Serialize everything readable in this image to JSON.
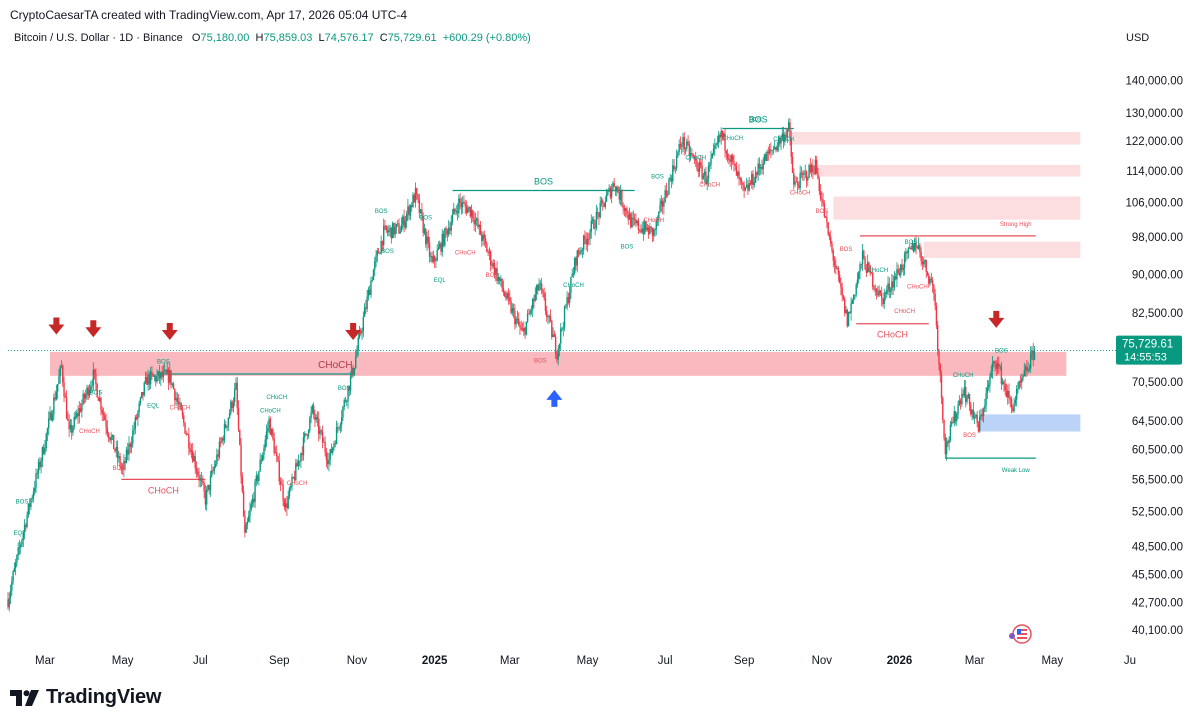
{
  "header": {
    "credit": "CryptoCaesarTA created with TradingView.com, Apr 17, 2026 05:04 UTC-4",
    "symbol": "Bitcoin / U.S. Dollar · 1D · Binance",
    "ohlc": {
      "o_label": "O",
      "o": "75,180.00",
      "h_label": "H",
      "h": "75,859.03",
      "l_label": "L",
      "l": "74,576.17",
      "c_label": "C",
      "c": "75,729.61",
      "change": "+600.29 (+0.80%)"
    },
    "currency": "USD"
  },
  "colors": {
    "up": "#089981",
    "down": "#f23645",
    "structure_red": "#e8505b",
    "zone_red": "#f7a1a8",
    "zone_blue": "#a9c8f5",
    "arrow_red": "#c62828",
    "arrow_blue": "#2962ff"
  },
  "brand": {
    "name": "TradingView",
    "icon": "tradingview-logo-icon"
  },
  "chart_data": {
    "type": "candlestick",
    "title": "Bitcoin / U.S. Dollar · 1D · Binance",
    "y_scale": "log",
    "ylim": [
      38500,
      148000
    ],
    "y_ticks": [
      {
        "value": 140000,
        "label": "140,000.00"
      },
      {
        "value": 130000,
        "label": "130,000.00"
      },
      {
        "value": 122000,
        "label": "122,000.00"
      },
      {
        "value": 114000,
        "label": "114,000.00"
      },
      {
        "value": 106000,
        "label": "106,000.00"
      },
      {
        "value": 98000,
        "label": "98,000.00"
      },
      {
        "value": 90000,
        "label": "90,000.00"
      },
      {
        "value": 82500,
        "label": "82,500.00"
      },
      {
        "value": 70500,
        "label": "70,500.00"
      },
      {
        "value": 64500,
        "label": "64,500.00"
      },
      {
        "value": 60500,
        "label": "60,500.00"
      },
      {
        "value": 56500,
        "label": "56,500.00"
      },
      {
        "value": 52500,
        "label": "52,500.00"
      },
      {
        "value": 48500,
        "label": "48,500.00"
      },
      {
        "value": 45500,
        "label": "45,500.00"
      },
      {
        "value": 42700,
        "label": "42,700.00"
      },
      {
        "value": 40100,
        "label": "40,100.00"
      }
    ],
    "x_range": [
      "2024-02-01",
      "2026-06-20"
    ],
    "x_ticks": [
      {
        "date": "2024-03-01",
        "label": "Mar",
        "bold": false
      },
      {
        "date": "2024-05-01",
        "label": "May",
        "bold": false
      },
      {
        "date": "2024-07-01",
        "label": "Jul",
        "bold": false
      },
      {
        "date": "2024-09-01",
        "label": "Sep",
        "bold": false
      },
      {
        "date": "2024-11-01",
        "label": "Nov",
        "bold": false
      },
      {
        "date": "2025-01-01",
        "label": "2025",
        "bold": true
      },
      {
        "date": "2025-03-01",
        "label": "Mar",
        "bold": false
      },
      {
        "date": "2025-05-01",
        "label": "May",
        "bold": false
      },
      {
        "date": "2025-07-01",
        "label": "Jul",
        "bold": false
      },
      {
        "date": "2025-09-01",
        "label": "Sep",
        "bold": false
      },
      {
        "date": "2025-11-01",
        "label": "Nov",
        "bold": false
      },
      {
        "date": "2026-01-01",
        "label": "2026",
        "bold": true
      },
      {
        "date": "2026-03-01",
        "label": "Mar",
        "bold": false
      },
      {
        "date": "2026-05-01",
        "label": "May",
        "bold": false
      },
      {
        "date": "2026-07-01",
        "label": "Ju",
        "bold": false
      }
    ],
    "price_path": [
      [
        "2024-02-01",
        43000
      ],
      [
        "2024-02-15",
        51500
      ],
      [
        "2024-02-28",
        60000
      ],
      [
        "2024-03-14",
        73000
      ],
      [
        "2024-03-20",
        62500
      ],
      [
        "2024-04-08",
        71500
      ],
      [
        "2024-04-19",
        63500
      ],
      [
        "2024-05-01",
        57500
      ],
      [
        "2024-05-20",
        71000
      ],
      [
        "2024-06-07",
        71500
      ],
      [
        "2024-06-24",
        60500
      ],
      [
        "2024-07-05",
        54000
      ],
      [
        "2024-07-29",
        69500
      ],
      [
        "2024-08-05",
        49500
      ],
      [
        "2024-08-24",
        64500
      ],
      [
        "2024-09-06",
        53000
      ],
      [
        "2024-09-27",
        66000
      ],
      [
        "2024-10-10",
        59000
      ],
      [
        "2024-10-29",
        72500
      ],
      [
        "2024-11-13",
        90000
      ],
      [
        "2024-11-22",
        99000
      ],
      [
        "2024-12-05",
        100000
      ],
      [
        "2024-12-17",
        108000
      ],
      [
        "2024-12-30",
        92000
      ],
      [
        "2025-01-20",
        106000
      ],
      [
        "2025-01-30",
        104000
      ],
      [
        "2025-02-25",
        86000
      ],
      [
        "2025-03-11",
        78500
      ],
      [
        "2025-03-24",
        88000
      ],
      [
        "2025-04-07",
        75500
      ],
      [
        "2025-04-22",
        93500
      ],
      [
        "2025-05-22",
        111000
      ],
      [
        "2025-06-05",
        101000
      ],
      [
        "2025-06-22",
        99000
      ],
      [
        "2025-07-14",
        122000
      ],
      [
        "2025-08-02",
        112000
      ],
      [
        "2025-08-14",
        124000
      ],
      [
        "2025-09-01",
        108000
      ],
      [
        "2025-09-15",
        116000
      ],
      [
        "2025-10-06",
        125500
      ],
      [
        "2025-10-10",
        110000
      ],
      [
        "2025-10-27",
        115500
      ],
      [
        "2025-11-05",
        100000
      ],
      [
        "2025-11-21",
        81000
      ],
      [
        "2025-12-03",
        93500
      ],
      [
        "2025-12-18",
        85000
      ],
      [
        "2026-01-14",
        97000
      ],
      [
        "2026-01-28",
        87000
      ],
      [
        "2026-02-06",
        60500
      ],
      [
        "2026-02-20",
        69500
      ],
      [
        "2026-03-04",
        63500
      ],
      [
        "2026-03-17",
        74500
      ],
      [
        "2026-03-30",
        66500
      ],
      [
        "2026-04-17",
        75729.61
      ]
    ],
    "current_price": {
      "value": 75729.61,
      "label": "75,729.61",
      "countdown": "14:55:53"
    },
    "zones": [
      {
        "from": "2024-03-05",
        "to": "2026-05-12",
        "y_low": 71500,
        "y_high": 75500,
        "color": "red",
        "label": "CHoCH"
      },
      {
        "from": "2025-10-08",
        "to": "2026-05-23",
        "y_low": 121000,
        "y_high": 124500,
        "color": "red"
      },
      {
        "from": "2025-10-27",
        "to": "2026-05-23",
        "y_low": 112500,
        "y_high": 115500,
        "color": "red"
      },
      {
        "from": "2025-11-10",
        "to": "2026-05-23",
        "y_low": 102000,
        "y_high": 107500,
        "color": "red"
      },
      {
        "from": "2026-01-20",
        "to": "2026-05-23",
        "y_low": 93500,
        "y_high": 97000,
        "color": "red"
      },
      {
        "from": "2026-03-05",
        "to": "2026-05-23",
        "y_low": 63000,
        "y_high": 65500,
        "color": "blue"
      }
    ],
    "structure_lines": [
      {
        "from": "2025-01-15",
        "to": "2025-06-07",
        "y": 109000,
        "color": "green",
        "label": "BOS"
      },
      {
        "from": "2025-08-15",
        "to": "2025-10-10",
        "y": 125500,
        "color": "green",
        "label": "BOS"
      },
      {
        "from": "2024-06-01",
        "to": "2024-10-28",
        "y": 71800,
        "color": "green"
      },
      {
        "from": "2024-04-30",
        "to": "2024-07-05",
        "y": 56500,
        "color": "red",
        "label": "CHoCH"
      },
      {
        "from": "2025-11-28",
        "to": "2026-01-24",
        "y": 80500,
        "color": "red",
        "label": "CHoCH"
      },
      {
        "from": "2025-12-01",
        "to": "2026-04-18",
        "y": 98300,
        "color": "red",
        "label": "Strong High"
      },
      {
        "from": "2026-02-06",
        "to": "2026-04-18",
        "y": 59300,
        "color": "green",
        "label": "Weak Low"
      }
    ],
    "arrows": [
      {
        "date": "2024-03-10",
        "price": 80000,
        "dir": "down",
        "color": "red"
      },
      {
        "date": "2024-04-08",
        "price": 79500,
        "dir": "down",
        "color": "red"
      },
      {
        "date": "2024-06-07",
        "price": 79000,
        "dir": "down",
        "color": "red"
      },
      {
        "date": "2024-10-29",
        "price": 79000,
        "dir": "down",
        "color": "red"
      },
      {
        "date": "2026-03-18",
        "price": 81200,
        "dir": "down",
        "color": "red"
      },
      {
        "date": "2025-04-05",
        "price": 68000,
        "dir": "up",
        "color": "blue"
      }
    ],
    "annotations": [
      {
        "date": "2024-02-12",
        "price": 53500,
        "text": "BOS",
        "color": "green"
      },
      {
        "date": "2024-02-10",
        "price": 49800,
        "text": "EQL",
        "color": "green"
      },
      {
        "date": "2024-06-02",
        "price": 73500,
        "text": "BOS",
        "color": "green"
      },
      {
        "date": "2024-04-10",
        "price": 68500,
        "text": "BOS",
        "color": "green"
      },
      {
        "date": "2024-05-25",
        "price": 66500,
        "text": "EQL",
        "color": "green"
      },
      {
        "date": "2024-04-05",
        "price": 62800,
        "text": "CHoCH",
        "color": "red"
      },
      {
        "date": "2024-06-15",
        "price": 66200,
        "text": "CHoCH",
        "color": "red"
      },
      {
        "date": "2024-04-28",
        "price": 57700,
        "text": "BOS",
        "color": "red"
      },
      {
        "date": "2024-08-25",
        "price": 65800,
        "text": "CHoCH",
        "color": "green"
      },
      {
        "date": "2024-08-30",
        "price": 67800,
        "text": "CHoCH",
        "color": "green"
      },
      {
        "date": "2024-09-15",
        "price": 55800,
        "text": "CHoCH",
        "color": "red"
      },
      {
        "date": "2024-10-22",
        "price": 69200,
        "text": "BOS",
        "color": "green"
      },
      {
        "date": "2024-11-20",
        "price": 103500,
        "text": "BOS",
        "color": "green"
      },
      {
        "date": "2024-11-25",
        "price": 94500,
        "text": "BOS",
        "color": "green"
      },
      {
        "date": "2024-12-25",
        "price": 102000,
        "text": "BOS",
        "color": "green"
      },
      {
        "date": "2025-01-05",
        "price": 88500,
        "text": "EQL",
        "color": "green"
      },
      {
        "date": "2025-01-25",
        "price": 94200,
        "text": "CHoCH",
        "color": "red"
      },
      {
        "date": "2025-02-15",
        "price": 89500,
        "text": "BOS",
        "color": "red"
      },
      {
        "date": "2025-03-25",
        "price": 73700,
        "text": "BOS",
        "color": "red"
      },
      {
        "date": "2025-04-20",
        "price": 87500,
        "text": "CHoCH",
        "color": "green"
      },
      {
        "date": "2025-06-01",
        "price": 95500,
        "text": "BOS",
        "color": "green"
      },
      {
        "date": "2025-06-25",
        "price": 112000,
        "text": "BOS",
        "color": "green"
      },
      {
        "date": "2025-07-25",
        "price": 117000,
        "text": "CHoCH",
        "color": "green"
      },
      {
        "date": "2025-08-05",
        "price": 110000,
        "text": "CHoCH",
        "color": "red"
      },
      {
        "date": "2025-06-22",
        "price": 101500,
        "text": "CHoCH",
        "color": "red"
      },
      {
        "date": "2025-08-23",
        "price": 122300,
        "text": "CHoCH",
        "color": "green"
      },
      {
        "date": "2025-09-10",
        "price": 127500,
        "text": "BOS",
        "color": "green"
      },
      {
        "date": "2025-10-02",
        "price": 122000,
        "text": "CHoCH",
        "color": "green"
      },
      {
        "date": "2025-10-15",
        "price": 108000,
        "text": "CHoCH",
        "color": "red"
      },
      {
        "date": "2025-11-01",
        "price": 103500,
        "text": "BOS",
        "color": "red"
      },
      {
        "date": "2025-11-20",
        "price": 95000,
        "text": "BOS",
        "color": "red"
      },
      {
        "date": "2025-12-15",
        "price": 90500,
        "text": "CHoCH",
        "color": "green"
      },
      {
        "date": "2026-01-10",
        "price": 96500,
        "text": "BOS",
        "color": "green"
      },
      {
        "date": "2026-01-15",
        "price": 87200,
        "text": "CHoCH",
        "color": "red"
      },
      {
        "date": "2026-01-05",
        "price": 82500,
        "text": "CHoCH",
        "color": "red"
      },
      {
        "date": "2026-02-20",
        "price": 71300,
        "text": "CHoCH",
        "color": "green"
      },
      {
        "date": "2026-03-22",
        "price": 75400,
        "text": "BOS",
        "color": "green"
      },
      {
        "date": "2026-02-25",
        "price": 62200,
        "text": "BOS",
        "color": "red"
      }
    ]
  }
}
